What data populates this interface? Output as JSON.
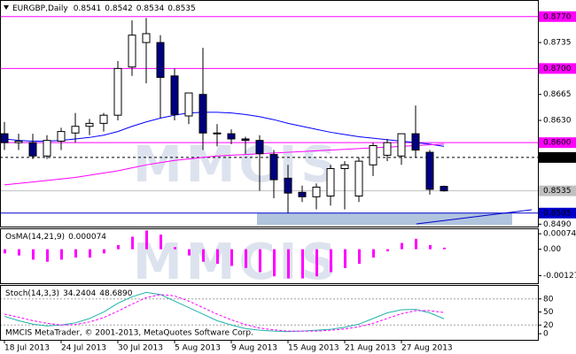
{
  "watermark": "MMCIS",
  "footer": "MMCIS MetaTrader, © 2001-2013, MetaQuotes Software Corp.",
  "chart_data": [
    {
      "type": "candlestick",
      "title": "EURGBP,Daily",
      "open": [
        0.8612,
        0.86,
        0.86,
        0.8582,
        0.8602,
        0.8613,
        0.8622,
        0.8626,
        0.8637,
        0.8702,
        0.8735,
        0.8735,
        0.869,
        0.8636,
        0.8665,
        0.8613,
        0.8612,
        0.8605,
        0.8603,
        0.8584,
        0.8552,
        0.8533,
        0.8527,
        0.8528,
        0.8565,
        0.8528,
        0.857,
        0.8583,
        0.8582,
        0.8612,
        0.8587,
        0.8541
      ],
      "high": [
        0.8628,
        0.8612,
        0.8612,
        0.861,
        0.862,
        0.864,
        0.8632,
        0.864,
        0.871,
        0.8765,
        0.8768,
        0.8745,
        0.87,
        0.8665,
        0.8728,
        0.8625,
        0.8618,
        0.8608,
        0.861,
        0.859,
        0.857,
        0.8542,
        0.8545,
        0.857,
        0.8575,
        0.858,
        0.86,
        0.8605,
        0.8612,
        0.865,
        0.859,
        0.8542
      ],
      "low": [
        0.859,
        0.859,
        0.8578,
        0.8578,
        0.859,
        0.86,
        0.861,
        0.8615,
        0.863,
        0.869,
        0.868,
        0.8633,
        0.863,
        0.8625,
        0.859,
        0.8595,
        0.8598,
        0.8585,
        0.8535,
        0.8525,
        0.8505,
        0.852,
        0.851,
        0.8515,
        0.851,
        0.852,
        0.8555,
        0.8575,
        0.857,
        0.858,
        0.853,
        0.8534
      ],
      "close": [
        0.86,
        0.8602,
        0.8582,
        0.8603,
        0.8615,
        0.8622,
        0.8626,
        0.8637,
        0.87,
        0.8745,
        0.8747,
        0.8688,
        0.8638,
        0.8667,
        0.8613,
        0.8612,
        0.8605,
        0.8603,
        0.8585,
        0.855,
        0.8532,
        0.8527,
        0.854,
        0.8565,
        0.857,
        0.8575,
        0.8596,
        0.86,
        0.8612,
        0.859,
        0.8537,
        0.8535
      ],
      "up_color": "#ffffff",
      "down_color": "#000080",
      "series": [
        {
          "color": "#0000ff",
          "values": [
            0.8605,
            0.8603,
            0.8602,
            0.8602,
            0.8603,
            0.8605,
            0.8607,
            0.861,
            0.8615,
            0.8622,
            0.8628,
            0.8633,
            0.8637,
            0.864,
            0.8641,
            0.8641,
            0.864,
            0.8638,
            0.8635,
            0.8631,
            0.8626,
            0.8622,
            0.8618,
            0.8614,
            0.8611,
            0.8608,
            0.8606,
            0.8604,
            0.8602,
            0.86,
            0.8598,
            0.8595
          ]
        },
        {
          "color": "#ff00ff",
          "values": [
            0.8543,
            0.8545,
            0.8547,
            0.8549,
            0.8551,
            0.8553,
            0.8556,
            0.8559,
            0.8562,
            0.8566,
            0.857,
            0.8573,
            0.8576,
            0.8578,
            0.858,
            0.8582,
            0.8583,
            0.8584,
            0.8585,
            0.8586,
            0.8587,
            0.8588,
            0.8589,
            0.859,
            0.8591,
            0.8592,
            0.8593,
            0.8594,
            0.8595,
            0.8596,
            0.8597,
            0.8598
          ]
        }
      ],
      "ylim": [
        0.8488,
        0.879
      ],
      "yticks": [
        0.8735,
        {
          "value": 0.8665,
          "label": "0.8665"
        },
        {
          "value": 0.863,
          "label": "0.8630"
        },
        {
          "value": 0.849,
          "label": "0.8490"
        }
      ],
      "levels": [
        {
          "value": 0.877,
          "label": "0.8770",
          "color": "#ff00ff"
        },
        {
          "value": 0.87,
          "label": "0.8700",
          "color": "#ff00ff"
        },
        {
          "value": 0.86,
          "label": "0.8600",
          "color": "#ff00ff"
        },
        {
          "value": 0.858,
          "label": "0.8580",
          "color": "#000000",
          "dashed": true
        },
        {
          "value": 0.8535,
          "label": "0.8535",
          "color": "#c0c0c0"
        },
        {
          "value": 0.8505,
          "label": "0.8505",
          "color": "#0000cd"
        }
      ]
    },
    {
      "type": "bar",
      "title": "OsMA(14,21,9)",
      "color": "#ff00ff",
      "values": [
        -0.0002,
        -0.0003,
        -0.0005,
        -0.0006,
        -0.0005,
        -0.0004,
        -0.0004,
        -0.0002,
        0.0002,
        0.0006,
        0.0009,
        0.0007,
        0.0001,
        -0.0003,
        -0.0006,
        -0.0007,
        -0.0008,
        -0.0009,
        -0.0011,
        -0.0013,
        -0.0014,
        -0.0014,
        -0.0013,
        -0.0011,
        -0.0009,
        -0.0007,
        -0.0004,
        -0.0001,
        0.0003,
        0.0005,
        0.0002,
        7.4e-05
      ],
      "ylim": [
        -0.00163,
        0.00096
      ],
      "yticks": [
        0.000741,
        {
          "value": 0,
          "label": "0.00"
        },
        -0.00127
      ]
    },
    {
      "type": "line",
      "title": "Stoch(14,3,3)",
      "categories": [
        "18 Jul 2013",
        null,
        null,
        null,
        "24 Jul 2013",
        null,
        null,
        null,
        "30 Jul 2013",
        null,
        null,
        null,
        "5 Aug 2013",
        null,
        null,
        null,
        "9 Aug 2013",
        null,
        null,
        null,
        "15 Aug 2013",
        null,
        null,
        null,
        "21 Aug 2013",
        null,
        null,
        null,
        "27 Aug 2013",
        null,
        null,
        null
      ],
      "series": [
        {
          "color": "#20b2aa",
          "values": [
            40,
            30,
            22,
            18,
            20,
            25,
            35,
            50,
            70,
            85,
            95,
            90,
            75,
            60,
            45,
            30,
            20,
            12,
            8,
            6,
            5,
            6,
            8,
            10,
            15,
            22,
            35,
            48,
            55,
            56,
            48,
            34.2404
          ]
        },
        {
          "color": "#ff00ff",
          "dashed": true,
          "values": [
            45,
            38,
            30,
            24,
            20,
            21,
            27,
            37,
            52,
            68,
            83,
            90,
            87,
            75,
            60,
            45,
            32,
            21,
            13,
            9,
            6,
            6,
            6,
            8,
            11,
            16,
            24,
            35,
            46,
            53,
            53,
            48.689
          ],
          "value_labels": [
            null,
            null,
            null,
            null,
            null,
            null,
            null,
            null,
            null,
            null,
            null,
            null,
            null,
            null,
            null,
            null,
            null,
            null,
            null,
            null,
            null,
            null,
            null,
            null,
            null,
            null,
            null,
            null,
            null,
            null,
            null,
            "48.6890"
          ]
        }
      ],
      "ylim": [
        -12,
        108
      ],
      "yticks": [
        0,
        20,
        50,
        80
      ],
      "levels": [
        20,
        80
      ]
    }
  ]
}
